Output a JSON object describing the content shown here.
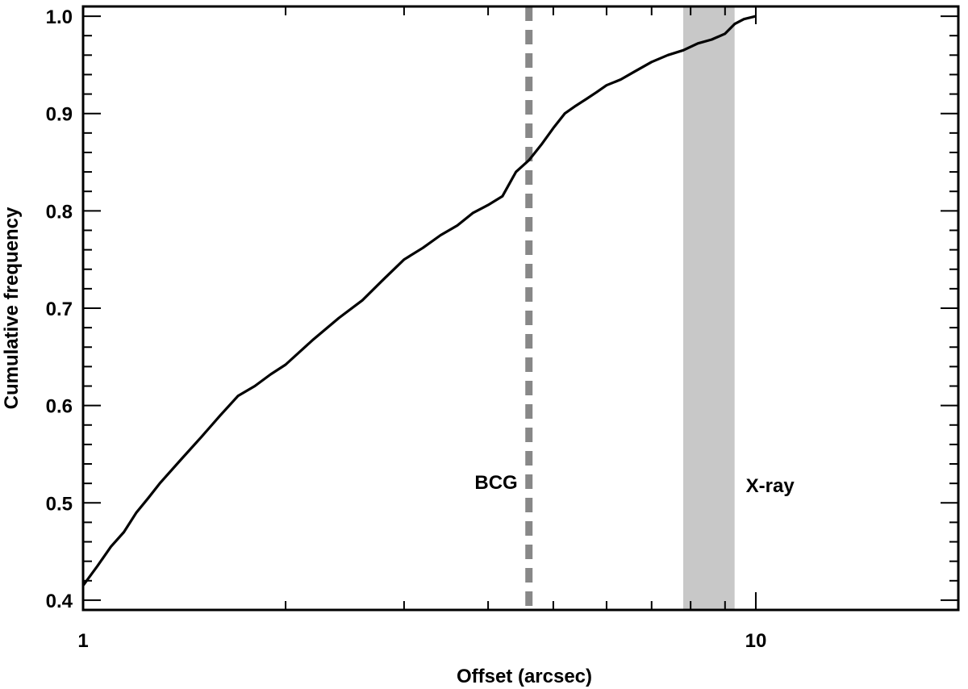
{
  "chart_data": {
    "type": "line",
    "title": "",
    "xlabel": "Offset (arcsec)",
    "ylabel": "Cumulative frequency",
    "xscale": "log",
    "xlim": [
      1,
      20
    ],
    "ylim": [
      0.39,
      1.01
    ],
    "grid": false,
    "x_tick_labels": [
      {
        "value": 1,
        "label": "1"
      },
      {
        "value": 10,
        "label": "10"
      }
    ],
    "y_tick_labels": [
      {
        "value": 0.4,
        "label": "0.4"
      },
      {
        "value": 0.5,
        "label": "0.5"
      },
      {
        "value": 0.6,
        "label": "0.6"
      },
      {
        "value": 0.7,
        "label": "0.7"
      },
      {
        "value": 0.8,
        "label": "0.8"
      },
      {
        "value": 0.9,
        "label": "0.9"
      },
      {
        "value": 1.0,
        "label": "1.0"
      }
    ],
    "series": [
      {
        "color": "#000000",
        "x": [
          1.0,
          1.05,
          1.1,
          1.15,
          1.2,
          1.25,
          1.3,
          1.4,
          1.5,
          1.6,
          1.7,
          1.8,
          1.9,
          2.0,
          2.2,
          2.4,
          2.6,
          2.8,
          3.0,
          3.2,
          3.4,
          3.6,
          3.8,
          4.0,
          4.2,
          4.4,
          4.6,
          4.8,
          5.0,
          5.2,
          5.4,
          5.6,
          5.8,
          6.0,
          6.3,
          6.6,
          7.0,
          7.4,
          7.8,
          8.2,
          8.6,
          9.0,
          9.3,
          9.6,
          10.0
        ],
        "y": [
          0.415,
          0.435,
          0.455,
          0.47,
          0.49,
          0.505,
          0.52,
          0.545,
          0.568,
          0.59,
          0.61,
          0.62,
          0.632,
          0.642,
          0.668,
          0.69,
          0.708,
          0.73,
          0.75,
          0.762,
          0.775,
          0.785,
          0.798,
          0.806,
          0.815,
          0.84,
          0.852,
          0.868,
          0.885,
          0.9,
          0.908,
          0.915,
          0.922,
          0.929,
          0.935,
          0.943,
          0.953,
          0.96,
          0.965,
          0.972,
          0.976,
          0.982,
          0.992,
          0.997,
          1.0
        ]
      }
    ],
    "annotations": [
      {
        "kind": "vline",
        "style": "dashed",
        "x": 4.6,
        "color": "#888888",
        "label": "BCG"
      },
      {
        "kind": "vband",
        "x_range": [
          7.8,
          9.3
        ],
        "color": "#c8c8c8",
        "label": "X-ray"
      }
    ]
  }
}
